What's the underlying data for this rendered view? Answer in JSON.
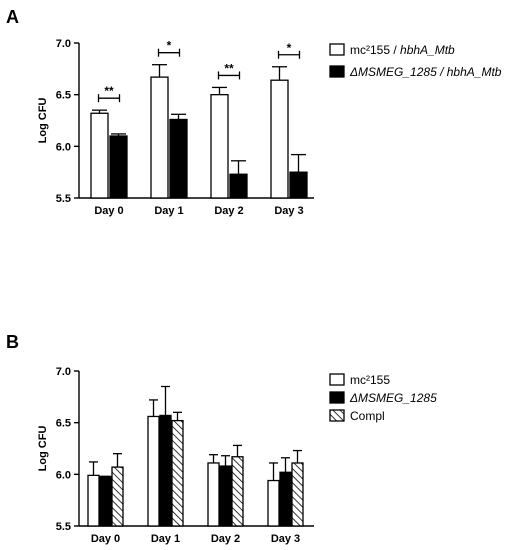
{
  "chart_data": [
    {
      "type": "bar",
      "panel": "A",
      "ylabel": "Log CFU",
      "ylim": [
        5.5,
        7.0
      ],
      "yticks": [
        "5.5",
        "6.0",
        "6.5",
        "7.0"
      ],
      "categories": [
        "Day 0",
        "Day 1",
        "Day 2",
        "Day 3"
      ],
      "series": [
        {
          "name": "mc²155 / hbhA_Mtb",
          "legend_parts": [
            {
              "text": "mc²155 / ",
              "italic": false
            },
            {
              "text": "hbhA_Mtb",
              "italic": true
            }
          ],
          "fill": "white",
          "values": [
            6.32,
            6.67,
            6.5,
            6.64
          ],
          "errors": [
            0.03,
            0.12,
            0.07,
            0.13
          ]
        },
        {
          "name": "ΔMSMEG_1285 / hbhA_Mtb",
          "legend_parts": [
            {
              "text": "ΔMSMEG_1285 / hbhA_Mtb",
              "italic": true
            }
          ],
          "fill": "black",
          "values": [
            6.1,
            6.26,
            5.73,
            5.75
          ],
          "errors": [
            0.02,
            0.05,
            0.13,
            0.17
          ]
        }
      ],
      "significance": [
        "**",
        "*",
        "**",
        "*"
      ],
      "legend_position": "right"
    },
    {
      "type": "bar",
      "panel": "B",
      "ylabel": "Log CFU",
      "ylim": [
        5.5,
        7.0
      ],
      "yticks": [
        "5.5",
        "6.0",
        "6.5",
        "7.0"
      ],
      "categories": [
        "Day 0",
        "Day 1",
        "Day 2",
        "Day 3"
      ],
      "series": [
        {
          "name": "mc²155",
          "legend_parts": [
            {
              "text": "mc²155",
              "italic": false
            }
          ],
          "fill": "white",
          "values": [
            5.99,
            6.56,
            6.11,
            5.94
          ],
          "errors": [
            0.13,
            0.16,
            0.08,
            0.17
          ]
        },
        {
          "name": "ΔMSMEG_1285",
          "legend_parts": [
            {
              "text": "ΔMSMEG_1285",
              "italic": true
            }
          ],
          "fill": "black",
          "values": [
            5.98,
            6.57,
            6.08,
            6.02
          ],
          "errors": [
            0.0,
            0.28,
            0.1,
            0.14
          ]
        },
        {
          "name": "Compl",
          "legend_parts": [
            {
              "text": "Compl",
              "italic": false
            }
          ],
          "fill": "hatch",
          "values": [
            6.07,
            6.52,
            6.17,
            6.11
          ],
          "errors": [
            0.13,
            0.08,
            0.11,
            0.12
          ]
        }
      ],
      "significance": [],
      "legend_position": "right"
    }
  ]
}
